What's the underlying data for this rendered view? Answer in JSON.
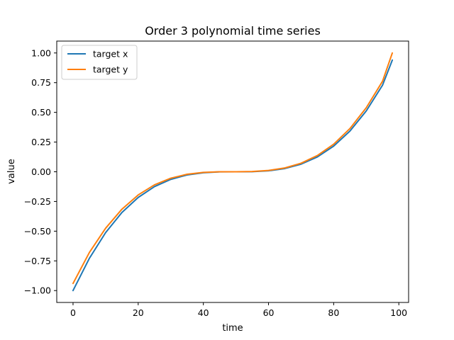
{
  "chart_data": {
    "type": "line",
    "title": "Order 3 polynomial time series",
    "xlabel": "time",
    "ylabel": "value",
    "xlim": [
      -5,
      103
    ],
    "ylim": [
      -1.1,
      1.1
    ],
    "x_ticks": [
      0,
      20,
      40,
      60,
      80,
      100
    ],
    "x_tick_labels": [
      "0",
      "20",
      "40",
      "60",
      "80",
      "100"
    ],
    "y_ticks": [
      -1.0,
      -0.75,
      -0.5,
      -0.25,
      0.0,
      0.25,
      0.5,
      0.75,
      1.0
    ],
    "y_tick_labels": [
      "−1.00",
      "−0.75",
      "−0.50",
      "−0.25",
      "0.00",
      "0.25",
      "0.50",
      "0.75",
      "1.00"
    ],
    "grid": false,
    "legend_position": "upper-left",
    "series": [
      {
        "name": "target x",
        "color": "#1f77b4",
        "x": [
          0,
          5,
          10,
          15,
          20,
          25,
          30,
          35,
          40,
          45,
          50,
          55,
          60,
          65,
          70,
          75,
          80,
          85,
          90,
          95,
          98
        ],
        "y": [
          -1.0,
          -0.729,
          -0.512,
          -0.343,
          -0.216,
          -0.125,
          -0.064,
          -0.027,
          -0.008,
          -0.001,
          0.0,
          0.001,
          0.008,
          0.027,
          0.064,
          0.125,
          0.216,
          0.343,
          0.512,
          0.729,
          0.94
        ]
      },
      {
        "name": "target y",
        "color": "#ff7f0e",
        "x": [
          0,
          5,
          10,
          15,
          20,
          25,
          30,
          35,
          40,
          45,
          50,
          55,
          60,
          65,
          70,
          75,
          80,
          85,
          90,
          95,
          98
        ],
        "y": [
          -0.94,
          -0.68,
          -0.475,
          -0.315,
          -0.195,
          -0.11,
          -0.054,
          -0.021,
          -0.005,
          0.0,
          0.0,
          0.002,
          0.011,
          0.032,
          0.072,
          0.137,
          0.232,
          0.364,
          0.539,
          0.762,
          1.0
        ]
      }
    ]
  }
}
